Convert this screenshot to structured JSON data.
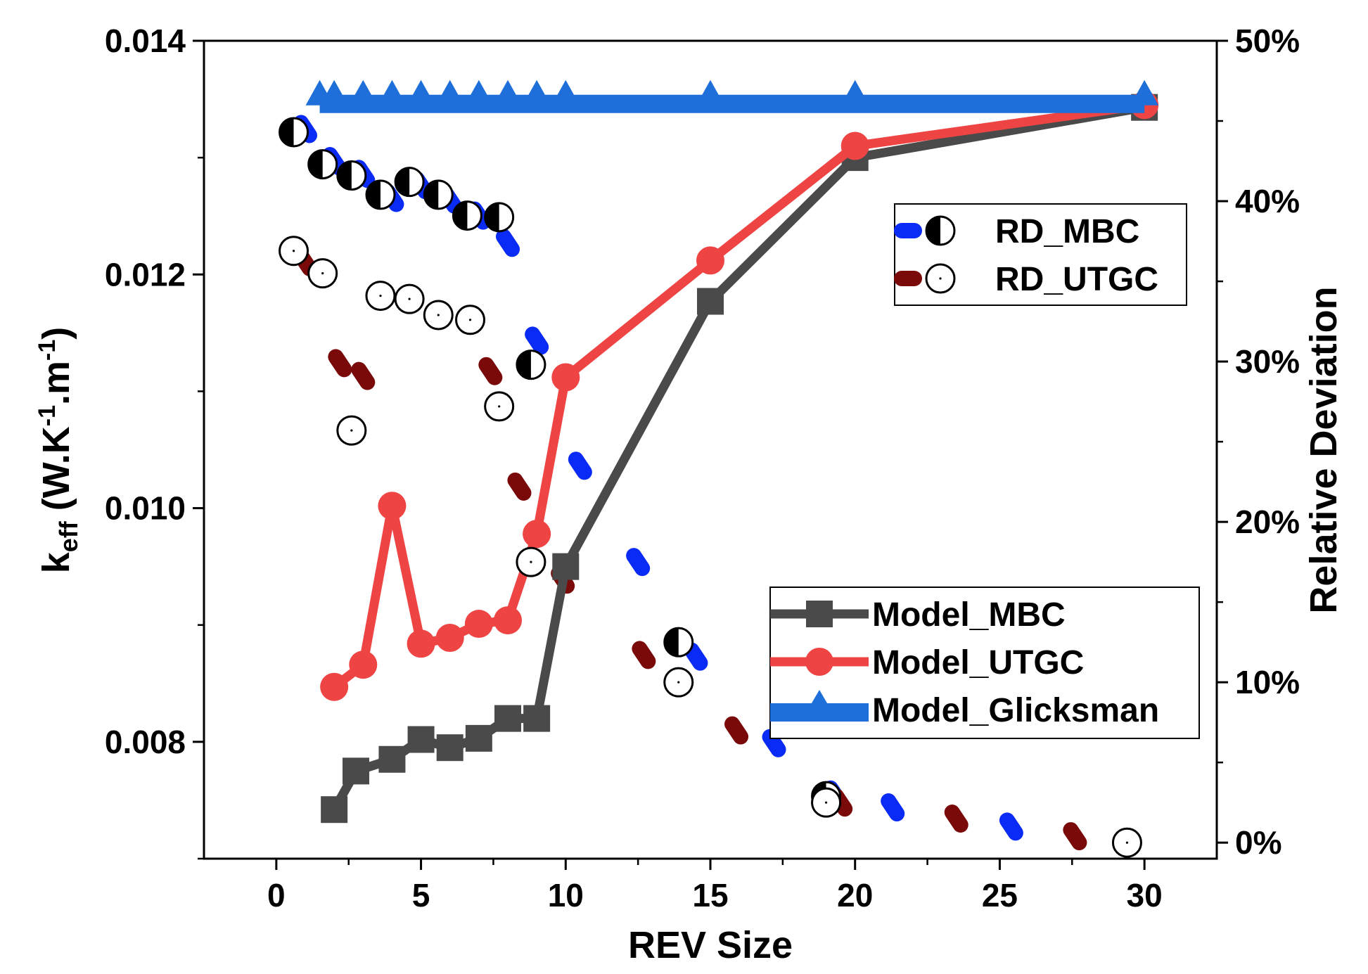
{
  "chart_data": {
    "type": "scatter",
    "xlabel": "REV Size",
    "ylabel": "k",
    "ylabel_subscript": "eff",
    "ylabel_units_pre": " (W.K",
    "ylabel_units_sup1": "-1",
    "ylabel_units_mid": ".m",
    "ylabel_units_sup2": "-1",
    "ylabel_units_post": ")",
    "y2label": "Relative Deviation",
    "xlim": [
      -2.5,
      32.5
    ],
    "ylim": [
      0.007,
      0.014
    ],
    "y2lim": [
      -1,
      50
    ],
    "x_ticks": [
      0,
      5,
      10,
      15,
      20,
      25,
      30
    ],
    "x_tick_labels": [
      "0",
      "5",
      "10",
      "15",
      "20",
      "25",
      "30"
    ],
    "y_ticks": [
      0.008,
      0.01,
      0.012,
      0.014
    ],
    "y_tick_labels": [
      "0.008",
      "0.010",
      "0.012",
      "0.014"
    ],
    "y2_ticks": [
      0,
      10,
      20,
      30,
      40,
      50
    ],
    "y2_tick_labels": [
      "0%",
      "10%",
      "20%",
      "30%",
      "40%",
      "50%"
    ],
    "colors": {
      "model_mbc": "#4a4a4a",
      "model_utgc": "#ef4444",
      "model_glicksman": "#1e6fd9",
      "rd_mbc": "#0a2bf5",
      "rd_utgc": "#7a0a0a"
    },
    "series": [
      {
        "name": "Model_MBC",
        "axis": "left",
        "kind": "line-square",
        "x": [
          2,
          2.75,
          4,
          5,
          6,
          7,
          8,
          9,
          10,
          15,
          20,
          30
        ],
        "y": [
          0.00742,
          0.00775,
          0.00785,
          0.00802,
          0.00795,
          0.00803,
          0.0082,
          0.0082,
          0.0095,
          0.01177,
          0.013,
          0.01343
        ]
      },
      {
        "name": "Model_UTGC",
        "axis": "left",
        "kind": "line-circle",
        "x": [
          2,
          3,
          4,
          5,
          6,
          7,
          8,
          9,
          10,
          15,
          20,
          30
        ],
        "y": [
          0.00847,
          0.00866,
          0.01002,
          0.00884,
          0.00889,
          0.00901,
          0.00904,
          0.00978,
          0.01112,
          0.01212,
          0.0131,
          0.01345
        ]
      },
      {
        "name": "Model_Glicksman",
        "axis": "left",
        "kind": "line-triangle",
        "x": [
          1.5,
          2,
          3,
          4,
          5,
          6,
          7,
          8,
          9,
          10,
          15,
          20,
          30
        ],
        "y": [
          0.01346,
          0.01346,
          0.01346,
          0.01346,
          0.01346,
          0.01346,
          0.01346,
          0.01346,
          0.01346,
          0.01346,
          0.01346,
          0.01346,
          0.01346
        ]
      },
      {
        "name": "RD_MBC",
        "axis": "right",
        "kind": "dash-halfcircle",
        "x": [
          1,
          2,
          3,
          4,
          5,
          6,
          7,
          8,
          9,
          10.5,
          12.5,
          14.5,
          17.2,
          19.3,
          21.3,
          25.4
        ],
        "y": [
          44.5,
          42.5,
          41.7,
          40.2,
          41.0,
          40.1,
          39.1,
          37.4,
          31.3,
          23.5,
          17.5,
          11.6,
          6.2,
          3.0,
          2.2,
          1.0
        ]
      },
      {
        "name": "RD_UTGC",
        "axis": "right",
        "kind": "dash-opencircle",
        "x": [
          1,
          2.2,
          3,
          7.4,
          8.4,
          9.9,
          12.7,
          15.9,
          19.5,
          23.5,
          27.6
        ],
        "y": [
          36.2,
          29.9,
          29.1,
          29.4,
          22.2,
          16.4,
          11.7,
          7.0,
          2.5,
          1.5,
          0.4
        ]
      },
      {
        "name": "RD_MBC",
        "axis": "right",
        "kind": "marker-halfcircle",
        "x": [
          0.6,
          1.6,
          2.6,
          3.6,
          4.6,
          5.6,
          6.6,
          7.7,
          8.8,
          13.9,
          19.0
        ],
        "y": [
          44.3,
          42.3,
          41.6,
          40.4,
          41.2,
          40.4,
          39.1,
          39.0,
          29.8,
          12.5,
          2.9
        ]
      },
      {
        "name": "RD_UTGC",
        "axis": "right",
        "kind": "marker-opencircle",
        "x": [
          0.6,
          1.6,
          2.6,
          3.6,
          4.6,
          5.6,
          6.7,
          7.7,
          8.8,
          13.9,
          19.0,
          29.4
        ],
        "y": [
          36.9,
          35.5,
          25.7,
          34.1,
          33.9,
          32.9,
          32.6,
          27.2,
          17.5,
          10.0,
          2.5,
          0.0
        ]
      }
    ],
    "legend_rd": {
      "position": "top-right",
      "entries": [
        "RD_MBC",
        "RD_UTGC"
      ]
    },
    "legend_model": {
      "position": "bottom-right",
      "entries": [
        "Model_MBC",
        "Model_UTGC",
        "Model_Glicksman"
      ]
    }
  }
}
